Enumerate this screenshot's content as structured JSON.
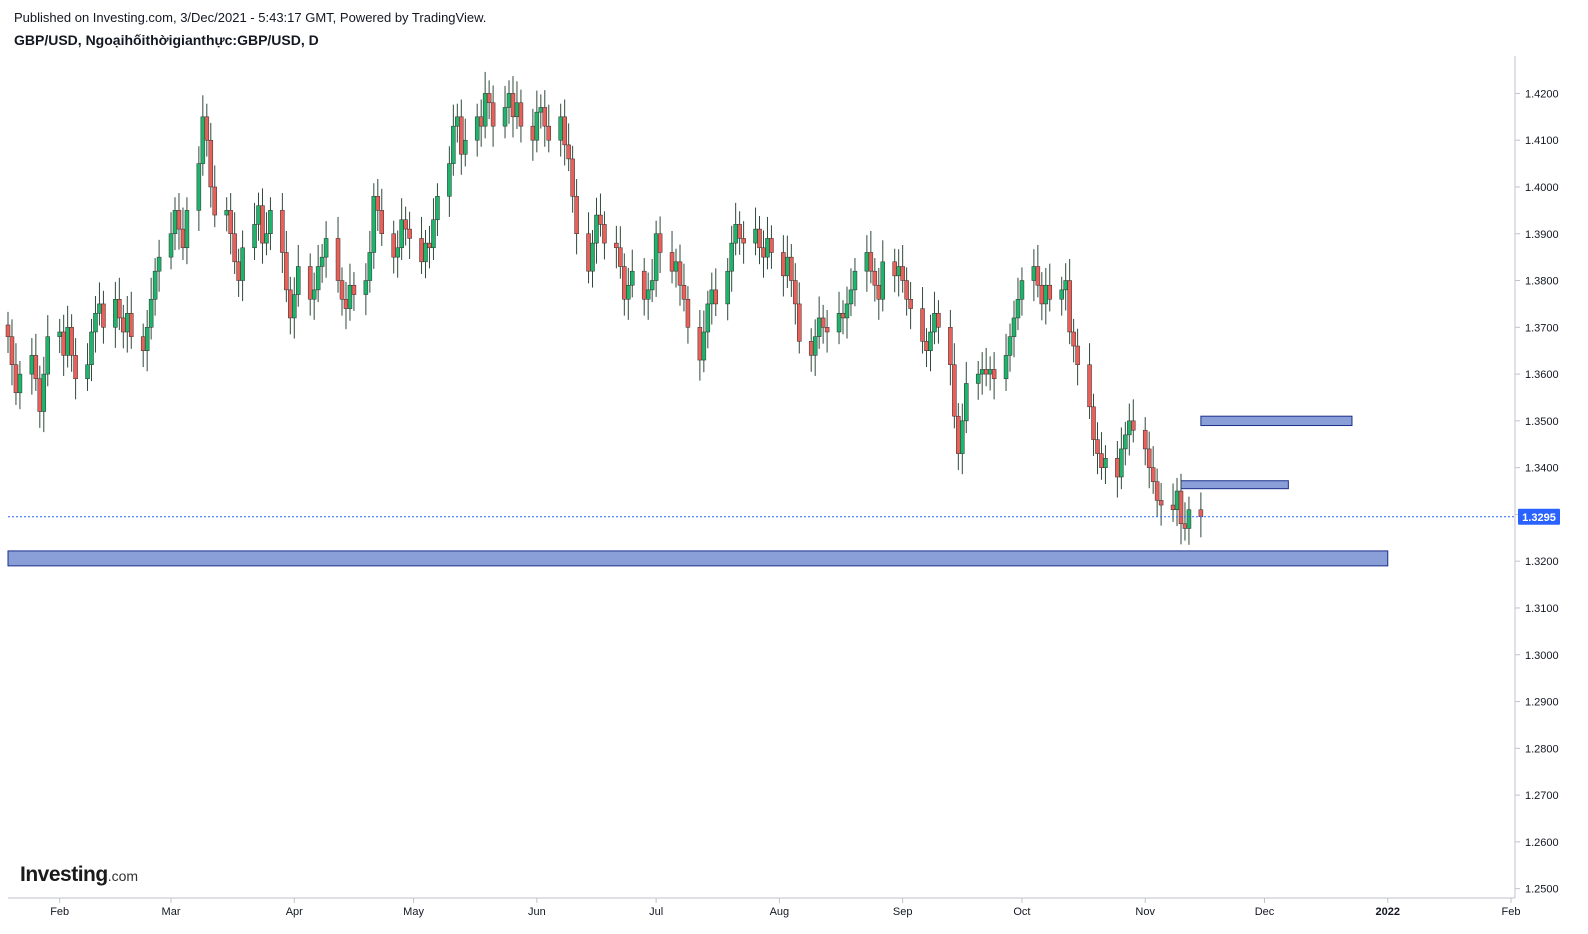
{
  "header": {
    "published": "Published on Investing.com, 3/Dec/2021 - 5:43:17 GMT, Powered by TradingView.",
    "symbol": "GBP/USD, Ngoạihốithờigianthực:GBP/USD, D"
  },
  "logo": {
    "main": "Investing",
    "suffix": ".com"
  },
  "colors": {
    "up": "#26a69a",
    "up_fill": "#1fb36b",
    "down": "#ef5350",
    "down_fill": "#e8605a",
    "zone_fill": "#8a9ed8",
    "zone_border": "#1c2f8c",
    "last_price": "#2962ff",
    "axis": "#c0c3cc",
    "text": "#131722"
  },
  "chart_data": {
    "type": "candlestick",
    "interval": "D",
    "x_ticks": [
      "Feb",
      "Mar",
      "Apr",
      "May",
      "Jun",
      "Jul",
      "Aug",
      "Sep",
      "Oct",
      "Nov",
      "Dec",
      "2022",
      "Feb"
    ],
    "x_range": [
      "2021-01-19",
      "2022-02-02"
    ],
    "y_ticks": [
      "1.4200",
      "1.4100",
      "1.4000",
      "1.3900",
      "1.3800",
      "1.3700",
      "1.3600",
      "1.3500",
      "1.3400",
      "1.3300",
      "1.3200",
      "1.3100",
      "1.3000",
      "1.2900",
      "1.2800",
      "1.2700",
      "1.2600",
      "1.2500"
    ],
    "ylim": [
      1.248,
      1.428
    ],
    "last_price": {
      "label": "1.3295",
      "value": 1.3295
    },
    "zones": [
      {
        "start": "2021-01-19",
        "end": "2022-01-01",
        "low": 1.319,
        "high": 1.3222
      },
      {
        "start": "2021-11-15",
        "end": "2021-12-23",
        "low": 1.349,
        "high": 1.351
      },
      {
        "start": "2021-11-10",
        "end": "2021-12-07",
        "low": 1.3355,
        "high": 1.3372
      }
    ],
    "closes": [
      1.368,
      1.362,
      1.356,
      1.36,
      1.364,
      1.359,
      1.352,
      1.36,
      1.368,
      1.369,
      1.364,
      1.37,
      1.364,
      1.359,
      1.362,
      1.369,
      1.373,
      1.375,
      1.37,
      1.376,
      1.372,
      1.369,
      1.373,
      1.368,
      1.365,
      1.37,
      1.376,
      1.382,
      1.385,
      1.39,
      1.395,
      1.391,
      1.387,
      1.395,
      1.405,
      1.415,
      1.41,
      1.4,
      1.394,
      1.395,
      1.39,
      1.384,
      1.38,
      1.387,
      1.392,
      1.396,
      1.388,
      1.39,
      1.395,
      1.386,
      1.378,
      1.372,
      1.377,
      1.383,
      1.376,
      1.378,
      1.383,
      1.385,
      1.389,
      1.38,
      1.376,
      1.374,
      1.379,
      1.377,
      1.38,
      1.386,
      1.398,
      1.395,
      1.39,
      1.385,
      1.387,
      1.393,
      1.391,
      1.389,
      1.384,
      1.388,
      1.387,
      1.393,
      1.398,
      1.405,
      1.413,
      1.415,
      1.407,
      1.41,
      1.415,
      1.413,
      1.42,
      1.418,
      1.413,
      1.417,
      1.42,
      1.415,
      1.418,
      1.413,
      1.41,
      1.416,
      1.417,
      1.413,
      1.41,
      1.415,
      1.409,
      1.406,
      1.398,
      1.39,
      1.382,
      1.388,
      1.394,
      1.392,
      1.388,
      1.387,
      1.383,
      1.376,
      1.379,
      1.382,
      1.376,
      1.378,
      1.38,
      1.39,
      1.386,
      1.382,
      1.384,
      1.379,
      1.376,
      1.37,
      1.363,
      1.369,
      1.375,
      1.378,
      1.375,
      1.382,
      1.388,
      1.392,
      1.389,
      1.388,
      1.391,
      1.387,
      1.385,
      1.389,
      1.386,
      1.381,
      1.385,
      1.38,
      1.375,
      1.367,
      1.364,
      1.368,
      1.372,
      1.37,
      1.369,
      1.373,
      1.372,
      1.375,
      1.378,
      1.382,
      1.386,
      1.382,
      1.379,
      1.376,
      1.384,
      1.381,
      1.383,
      1.38,
      1.376,
      1.374,
      1.367,
      1.365,
      1.369,
      1.373,
      1.37,
      1.362,
      1.351,
      1.343,
      1.35,
      1.358,
      1.36,
      1.361,
      1.36,
      1.361,
      1.359,
      1.364,
      1.368,
      1.372,
      1.376,
      1.38,
      1.383,
      1.379,
      1.375,
      1.379,
      1.376,
      1.378,
      1.38,
      1.369,
      1.366,
      1.362,
      1.353,
      1.346,
      1.343,
      1.34,
      1.342,
      1.338,
      1.344,
      1.347,
      1.35,
      1.348,
      1.344,
      1.34,
      1.337,
      1.333,
      1.332,
      1.331,
      1.335,
      1.328,
      1.327,
      1.331,
      1.3295
    ]
  }
}
